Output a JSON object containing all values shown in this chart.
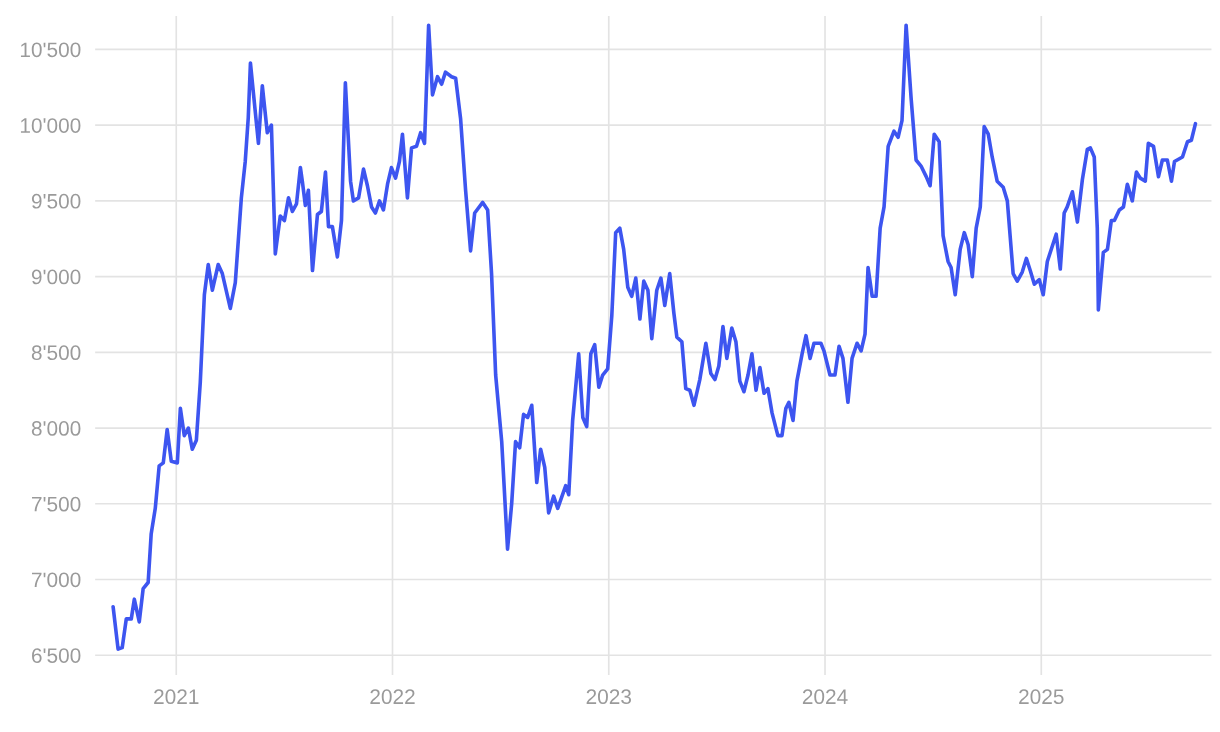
{
  "chart_data": {
    "type": "line",
    "x": [
      2020.708,
      2020.731,
      2020.75,
      2020.769,
      2020.792,
      2020.806,
      2020.829,
      2020.847,
      2020.87,
      2020.884,
      2020.903,
      2020.921,
      2020.94,
      2020.958,
      2020.977,
      2021.005,
      2021.019,
      2021.037,
      2021.056,
      2021.074,
      2021.093,
      2021.111,
      2021.13,
      2021.148,
      2021.167,
      2021.194,
      2021.213,
      2021.25,
      2021.273,
      2021.301,
      2021.319,
      2021.333,
      2021.343,
      2021.38,
      2021.398,
      2021.421,
      2021.44,
      2021.458,
      2021.481,
      2021.5,
      2021.519,
      2021.537,
      2021.556,
      2021.574,
      2021.583,
      2021.597,
      2021.611,
      2021.63,
      2021.653,
      2021.671,
      2021.69,
      2021.704,
      2021.722,
      2021.745,
      2021.764,
      2021.782,
      2021.806,
      2021.819,
      2021.843,
      2021.866,
      2021.884,
      2021.903,
      2021.921,
      2021.94,
      2021.958,
      2021.977,
      2021.995,
      2022.014,
      2022.032,
      2022.046,
      2022.069,
      2022.088,
      2022.111,
      2022.13,
      2022.148,
      2022.167,
      2022.185,
      2022.208,
      2022.227,
      2022.245,
      2022.273,
      2022.292,
      2022.315,
      2022.338,
      2022.361,
      2022.38,
      2022.417,
      2022.44,
      2022.458,
      2022.477,
      2022.505,
      2022.532,
      2022.551,
      2022.569,
      2022.588,
      2022.606,
      2022.625,
      2022.644,
      2022.667,
      2022.685,
      2022.704,
      2022.722,
      2022.745,
      2022.764,
      2022.801,
      2022.815,
      2022.833,
      2022.861,
      2022.88,
      2022.898,
      2022.917,
      2022.935,
      2022.954,
      2022.972,
      2022.995,
      2023.014,
      2023.032,
      2023.051,
      2023.069,
      2023.088,
      2023.106,
      2023.125,
      2023.144,
      2023.162,
      2023.181,
      2023.199,
      2023.222,
      2023.241,
      2023.259,
      2023.282,
      2023.301,
      2023.315,
      2023.338,
      2023.356,
      2023.375,
      2023.394,
      2023.421,
      2023.449,
      2023.472,
      2023.491,
      2023.509,
      2023.528,
      2023.546,
      2023.569,
      2023.588,
      2023.606,
      2023.625,
      2023.644,
      2023.662,
      2023.681,
      2023.699,
      2023.718,
      2023.736,
      2023.755,
      2023.782,
      2023.801,
      2023.819,
      2023.833,
      2023.852,
      2023.87,
      2023.894,
      2023.912,
      2023.931,
      2023.949,
      2023.981,
      2023.995,
      2024.023,
      2024.046,
      2024.065,
      2024.083,
      2024.106,
      2024.125,
      2024.148,
      2024.167,
      2024.185,
      2024.199,
      2024.218,
      2024.236,
      2024.255,
      2024.273,
      2024.292,
      2024.319,
      2024.338,
      2024.356,
      2024.375,
      2024.398,
      2024.421,
      2024.444,
      2024.468,
      2024.486,
      2024.505,
      2024.528,
      2024.546,
      2024.569,
      2024.583,
      2024.602,
      2024.625,
      2024.644,
      2024.662,
      2024.681,
      2024.699,
      2024.718,
      2024.736,
      2024.755,
      2024.773,
      2024.796,
      2024.824,
      2024.843,
      2024.87,
      2024.889,
      2024.912,
      2024.931,
      2024.949,
      2024.968,
      2024.991,
      2025.009,
      2025.028,
      2025.069,
      2025.088,
      2025.106,
      2025.12,
      2025.144,
      2025.167,
      2025.19,
      2025.213,
      2025.227,
      2025.245,
      2025.259,
      2025.264,
      2025.287,
      2025.306,
      2025.324,
      2025.338,
      2025.361,
      2025.38,
      2025.398,
      2025.421,
      2025.44,
      2025.458,
      2025.481,
      2025.495,
      2025.519,
      2025.542,
      2025.56,
      2025.583,
      2025.602,
      2025.616,
      2025.653,
      2025.676,
      2025.694,
      2025.713
    ],
    "series": [
      {
        "color": "#3d55f0",
        "values": [
          6820,
          6540,
          6550,
          6740,
          6740,
          6870,
          6720,
          6940,
          6980,
          7300,
          7470,
          7750,
          7770,
          7990,
          7780,
          7770,
          8130,
          7950,
          8000,
          7860,
          7920,
          8300,
          8880,
          9080,
          8910,
          9080,
          9020,
          8790,
          8960,
          9520,
          9760,
          10050,
          10410,
          9880,
          10260,
          9950,
          10000,
          9150,
          9400,
          9370,
          9520,
          9430,
          9480,
          9720,
          9630,
          9470,
          9570,
          9040,
          9410,
          9430,
          9690,
          9330,
          9330,
          9130,
          9370,
          10280,
          9630,
          9500,
          9520,
          9710,
          9600,
          9460,
          9420,
          9500,
          9440,
          9610,
          9720,
          9650,
          9760,
          9940,
          9520,
          9850,
          9860,
          9950,
          9880,
          10660,
          10200,
          10320,
          10270,
          10350,
          10320,
          10310,
          10040,
          9570,
          9170,
          9420,
          9490,
          9440,
          9020,
          8350,
          7910,
          7200,
          7500,
          7910,
          7870,
          8090,
          8070,
          8150,
          7640,
          7860,
          7740,
          7440,
          7550,
          7470,
          7620,
          7560,
          8050,
          8490,
          8070,
          8010,
          8490,
          8550,
          8270,
          8350,
          8390,
          8740,
          9290,
          9320,
          9180,
          8930,
          8870,
          8990,
          8720,
          8970,
          8910,
          8590,
          8910,
          8990,
          8810,
          9020,
          8760,
          8600,
          8570,
          8260,
          8250,
          8150,
          8320,
          8560,
          8360,
          8320,
          8410,
          8670,
          8460,
          8660,
          8570,
          8310,
          8240,
          8350,
          8490,
          8250,
          8400,
          8230,
          8260,
          8100,
          7950,
          7950,
          8130,
          8170,
          8050,
          8310,
          8490,
          8610,
          8460,
          8560,
          8560,
          8510,
          8350,
          8350,
          8540,
          8460,
          8170,
          8460,
          8560,
          8510,
          8620,
          9060,
          8870,
          8870,
          9320,
          9460,
          9860,
          9960,
          9920,
          10030,
          10660,
          10180,
          9770,
          9730,
          9660,
          9600,
          9940,
          9890,
          9270,
          9100,
          9060,
          8880,
          9180,
          9290,
          9210,
          9000,
          9320,
          9460,
          9990,
          9940,
          9790,
          9630,
          9590,
          9500,
          9020,
          8970,
          9030,
          9120,
          9040,
          8950,
          8980,
          8880,
          9100,
          9280,
          9050,
          9420,
          9460,
          9560,
          9360,
          9640,
          9840,
          9850,
          9790,
          9320,
          8780,
          9160,
          9180,
          9370,
          9370,
          9440,
          9460,
          9610,
          9500,
          9690,
          9650,
          9630,
          9880,
          9860,
          9660,
          9770,
          9770,
          9630,
          9760,
          9790,
          9890,
          9900,
          10010
        ]
      }
    ],
    "xlim": [
      2020.625,
      2025.787
    ],
    "xticks": [
      2021,
      2022,
      2023,
      2024,
      2025
    ],
    "ylim": [
      6370,
      10720
    ],
    "yticks": [
      {
        "value": 6500,
        "label": "6'500"
      },
      {
        "value": 7000,
        "label": "7'000"
      },
      {
        "value": 7500,
        "label": "7'500"
      },
      {
        "value": 8000,
        "label": "8'000"
      },
      {
        "value": 8500,
        "label": "8'500"
      },
      {
        "value": 9000,
        "label": "9'000"
      },
      {
        "value": 9500,
        "label": "9'500"
      },
      {
        "value": 10000,
        "label": "10'000"
      },
      {
        "value": 10500,
        "label": "10'500"
      }
    ],
    "grid": true,
    "line_style": "solid"
  }
}
